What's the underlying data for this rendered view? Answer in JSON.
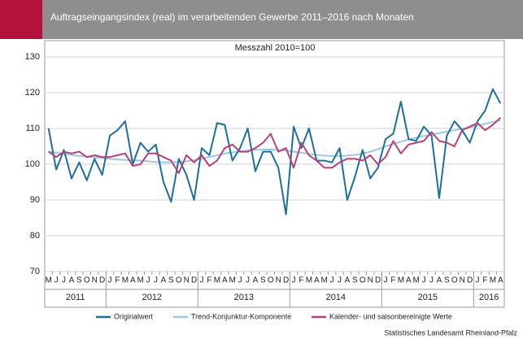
{
  "chart_data": {
    "type": "line",
    "title": "Auftragseingangsindex (real) im verarbeitenden Gewerbe 2011–2016 nach Monaten",
    "subtitle": "Messzahl 2010=100",
    "source": "Statistisches Landesamt Rheinland-Pfalz",
    "categories": [
      "M",
      "J",
      "J",
      "A",
      "S",
      "O",
      "N",
      "D",
      "J",
      "F",
      "M",
      "A",
      "M",
      "J",
      "J",
      "A",
      "S",
      "O",
      "N",
      "D",
      "J",
      "F",
      "M",
      "A",
      "M",
      "J",
      "J",
      "A",
      "S",
      "O",
      "N",
      "D",
      "J",
      "F",
      "M",
      "A",
      "M",
      "J",
      "J",
      "A",
      "S",
      "O",
      "N",
      "D",
      "J",
      "F",
      "M",
      "A",
      "M",
      "J",
      "J",
      "A",
      "S",
      "O",
      "N",
      "D",
      "J",
      "F",
      "M",
      "A"
    ],
    "years": [
      "2011",
      "2012",
      "2013",
      "2014",
      "2015",
      "2016"
    ],
    "ylim": [
      70,
      130
    ],
    "yticks": [
      70,
      80,
      90,
      100,
      110,
      120,
      130
    ],
    "grid": true,
    "series": [
      {
        "name": "Originalwert",
        "color": "#1f6e9c",
        "values": [
          110,
          98.5,
          104,
          96,
          100.5,
          95.5,
          101.5,
          97,
          108,
          109.5,
          112,
          100,
          106,
          103.5,
          105.5,
          95,
          89.5,
          101.5,
          97,
          90,
          104.5,
          102.5,
          111.5,
          111,
          101,
          104.5,
          110,
          98,
          103.5,
          103.5,
          99,
          86,
          110.5,
          104.5,
          110,
          101,
          101,
          100.5,
          104.5,
          90,
          96.5,
          104,
          96,
          99,
          107,
          108.5,
          117.5,
          107,
          106.5,
          110.5,
          108,
          90.5,
          108,
          112,
          109.5,
          106,
          112,
          115,
          121,
          117
        ]
      },
      {
        "name": "Trend-Konjunktur-Komponente",
        "color": "#9cc7e0",
        "values": [
          103.5,
          103.2,
          102.9,
          102.6,
          102.3,
          102.1,
          101.9,
          101.7,
          101.5,
          101.3,
          101.2,
          101.1,
          101,
          100.8,
          100.6,
          100.5,
          100.5,
          100.6,
          100.8,
          101.1,
          101.5,
          102,
          102.5,
          103,
          103.3,
          103.6,
          103.8,
          104,
          104.1,
          104.1,
          104,
          103.8,
          103.5,
          103.2,
          102.9,
          102.6,
          102.4,
          102.3,
          102.3,
          102.4,
          102.6,
          103,
          103.5,
          104.2,
          105,
          105.7,
          106.3,
          106.9,
          107.4,
          107.9,
          108.3,
          108.7,
          109.1,
          109.5,
          109.9,
          110.3,
          110.8,
          111.3,
          111.8,
          112.3
        ]
      },
      {
        "name": "Kalender- und saisonbereinigte Werte",
        "color": "#b5417a",
        "values": [
          103.5,
          102,
          103.5,
          103,
          103.5,
          102,
          102.5,
          102,
          102,
          102.5,
          103,
          99.5,
          100,
          103,
          103,
          102,
          101,
          97.5,
          102.5,
          100.5,
          102.5,
          99.5,
          101,
          104.5,
          105.5,
          103.5,
          103.5,
          104.5,
          106,
          108.5,
          103.5,
          104.5,
          99,
          106,
          102.5,
          101,
          99,
          99,
          100.5,
          101.5,
          101.5,
          101,
          102.5,
          100,
          102,
          106.5,
          103,
          105.5,
          106,
          106.5,
          109,
          106.5,
          106,
          105,
          109.5,
          110.5,
          111.5,
          109.5,
          111,
          113
        ]
      }
    ]
  }
}
